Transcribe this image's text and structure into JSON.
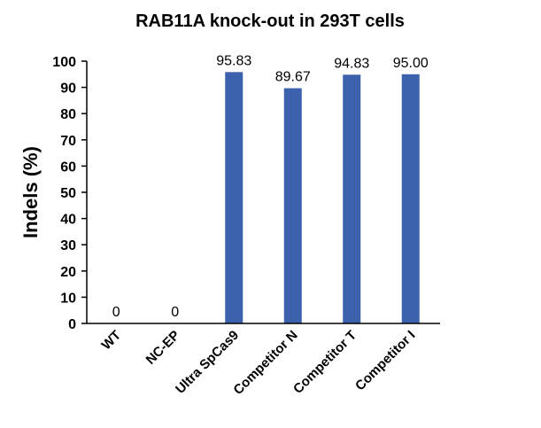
{
  "chart_data": {
    "type": "bar",
    "title": "RAB11A knock-out in 293T cells",
    "y_label": "Indels (%)",
    "categories": [
      "WT",
      "NC-EP",
      "Ultra SpCas9",
      "Competitor N",
      "Competitor T",
      "Competitor I"
    ],
    "values": [
      0,
      0,
      95.83,
      89.67,
      94.83,
      95.0
    ],
    "value_labels": [
      "0",
      "0",
      "95.83",
      "89.67",
      "94.83",
      "95.00"
    ],
    "color": "#3c61ad",
    "ylim": [
      0,
      100
    ],
    "yticks": [
      0,
      10,
      20,
      30,
      40,
      50,
      60,
      70,
      80,
      90,
      100
    ],
    "grid": false
  }
}
